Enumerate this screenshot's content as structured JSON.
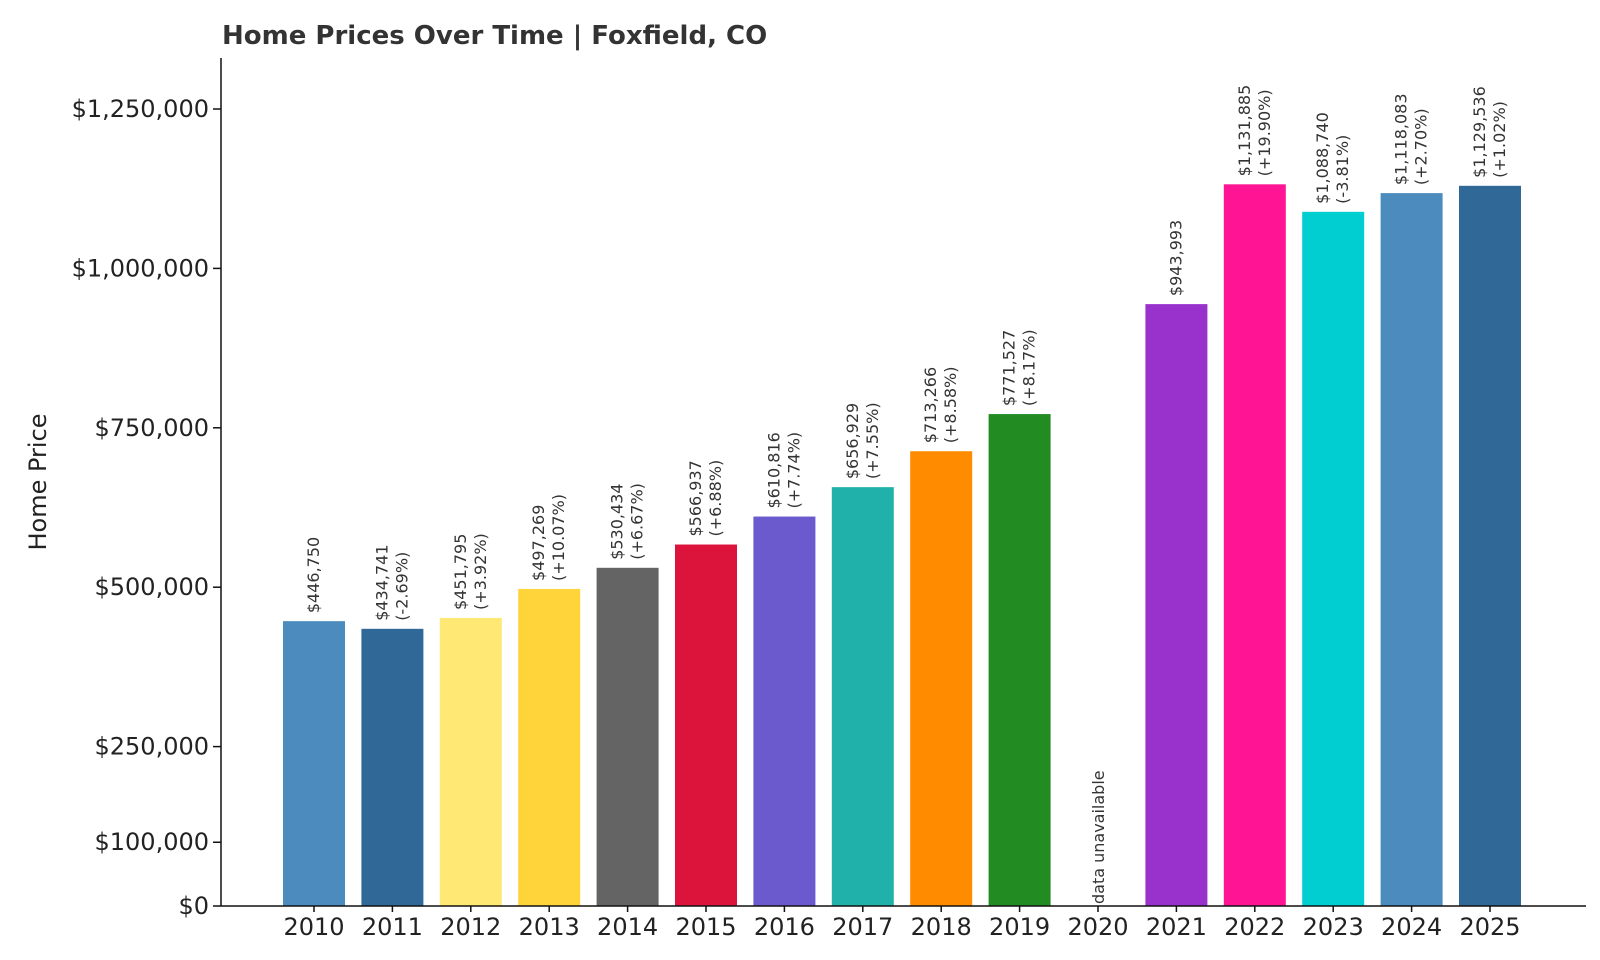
{
  "chart_data": {
    "type": "bar",
    "title": "Home Prices Over Time | Foxfield, CO",
    "xlabel": "",
    "ylabel": "Home Price",
    "categories": [
      "2010",
      "2011",
      "2012",
      "2013",
      "2014",
      "2015",
      "2016",
      "2017",
      "2018",
      "2019",
      "2020",
      "2021",
      "2022",
      "2023",
      "2024",
      "2025"
    ],
    "values": [
      446750,
      434741,
      451795,
      497269,
      530434,
      566937,
      610816,
      656929,
      713266,
      771527,
      null,
      943993,
      1131885,
      1088740,
      1118083,
      1129536
    ],
    "labels": [
      [
        "$446,750"
      ],
      [
        "$434,741",
        "(-2.69%)"
      ],
      [
        "$451,795",
        "(+3.92%)"
      ],
      [
        "$497,269",
        "(+10.07%)"
      ],
      [
        "$530,434",
        "(+6.67%)"
      ],
      [
        "$566,937",
        "(+6.88%)"
      ],
      [
        "$610,816",
        "(+7.74%)"
      ],
      [
        "$656,929",
        "(+7.55%)"
      ],
      [
        "$713,266",
        "(+8.58%)"
      ],
      [
        "$771,527",
        "(+8.17%)"
      ],
      [
        "data unavailable"
      ],
      [
        "$943,993"
      ],
      [
        "$1,131,885",
        "(+19.90%)"
      ],
      [
        "$1,088,740",
        "(-3.81%)"
      ],
      [
        "$1,118,083",
        "(+2.70%)"
      ],
      [
        "$1,129,536",
        "(+1.02%)"
      ]
    ],
    "colors": [
      "#4b8bbe",
      "#306998",
      "#ffe873",
      "#ffd43b",
      "#646464",
      "#dc143c",
      "#6a5acd",
      "#20b2aa",
      "#ff8c00",
      "#228b22",
      "#cccccc",
      "#9932cc",
      "#ff1493",
      "#00ced1",
      "#4b8bbe",
      "#306998"
    ],
    "yticks": [
      0,
      100000,
      250000,
      500000,
      750000,
      1000000,
      1250000
    ],
    "ytick_labels": [
      "$0",
      "$100,000",
      "$250,000",
      "$500,000",
      "$750,000",
      "$1,000,000",
      "$1,250,000"
    ],
    "ylim": [
      0,
      1330000
    ],
    "grid": false,
    "legend": "none"
  }
}
